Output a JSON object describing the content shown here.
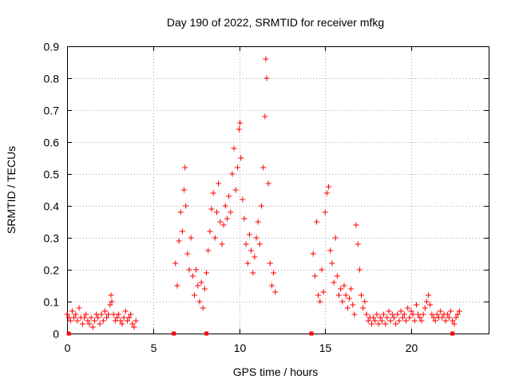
{
  "chart_data": {
    "type": "scatter",
    "title": "Day 190 of 2022, SRMTID for receiver mfkg",
    "xlabel": "GPS time / hours",
    "ylabel": "SRMTID / TECUs",
    "xlim": [
      0,
      24.5
    ],
    "ylim": [
      0,
      0.9
    ],
    "xticks": [
      0,
      5,
      10,
      15,
      20
    ],
    "yticks": [
      0,
      0.1,
      0.2,
      0.3,
      0.4,
      0.5,
      0.6,
      0.7,
      0.8,
      0.9
    ],
    "xtick_labels": [
      "0",
      "5",
      "10",
      "15",
      "20"
    ],
    "ytick_labels": [
      "0",
      "0.1",
      "0.2",
      "0.3",
      "0.4",
      "0.5",
      "0.6",
      "0.7",
      "0.8",
      "0.9"
    ],
    "grid": true,
    "marker": "+",
    "color": "#ff0000",
    "series": [
      {
        "name": "SRMTID",
        "points": [
          [
            0.0,
            0.06
          ],
          [
            0.1,
            0.05
          ],
          [
            0.2,
            0.04
          ],
          [
            0.3,
            0.07
          ],
          [
            0.4,
            0.05
          ],
          [
            0.5,
            0.06
          ],
          [
            0.6,
            0.04
          ],
          [
            0.7,
            0.08
          ],
          [
            0.8,
            0.05
          ],
          [
            0.9,
            0.03
          ],
          [
            1.0,
            0.05
          ],
          [
            1.1,
            0.06
          ],
          [
            1.2,
            0.04
          ],
          [
            1.3,
            0.03
          ],
          [
            1.4,
            0.05
          ],
          [
            1.5,
            0.02
          ],
          [
            1.6,
            0.04
          ],
          [
            1.7,
            0.06
          ],
          [
            1.8,
            0.05
          ],
          [
            1.9,
            0.03
          ],
          [
            2.0,
            0.06
          ],
          [
            2.1,
            0.04
          ],
          [
            2.2,
            0.07
          ],
          [
            2.3,
            0.05
          ],
          [
            2.4,
            0.06
          ],
          [
            2.5,
            0.09
          ],
          [
            2.55,
            0.12
          ],
          [
            2.6,
            0.1
          ],
          [
            2.7,
            0.06
          ],
          [
            2.8,
            0.04
          ],
          [
            2.9,
            0.05
          ],
          [
            3.0,
            0.06
          ],
          [
            3.1,
            0.04
          ],
          [
            3.2,
            0.03
          ],
          [
            3.3,
            0.05
          ],
          [
            3.4,
            0.07
          ],
          [
            3.5,
            0.04
          ],
          [
            3.6,
            0.05
          ],
          [
            3.7,
            0.06
          ],
          [
            3.8,
            0.03
          ],
          [
            3.9,
            0.02
          ],
          [
            4.0,
            0.04
          ],
          [
            6.3,
            0.22
          ],
          [
            6.4,
            0.15
          ],
          [
            6.5,
            0.29
          ],
          [
            6.6,
            0.38
          ],
          [
            6.7,
            0.32
          ],
          [
            6.8,
            0.45
          ],
          [
            6.85,
            0.52
          ],
          [
            6.9,
            0.4
          ],
          [
            7.0,
            0.25
          ],
          [
            7.1,
            0.2
          ],
          [
            7.2,
            0.3
          ],
          [
            7.3,
            0.18
          ],
          [
            7.4,
            0.12
          ],
          [
            7.5,
            0.2
          ],
          [
            7.6,
            0.15
          ],
          [
            7.7,
            0.1
          ],
          [
            7.8,
            0.16
          ],
          [
            7.9,
            0.08
          ],
          [
            8.0,
            0.14
          ],
          [
            8.1,
            0.19
          ],
          [
            8.2,
            0.26
          ],
          [
            8.3,
            0.32
          ],
          [
            8.4,
            0.39
          ],
          [
            8.5,
            0.44
          ],
          [
            8.6,
            0.3
          ],
          [
            8.7,
            0.38
          ],
          [
            8.8,
            0.47
          ],
          [
            8.9,
            0.35
          ],
          [
            9.0,
            0.28
          ],
          [
            9.1,
            0.34
          ],
          [
            9.2,
            0.4
          ],
          [
            9.3,
            0.36
          ],
          [
            9.4,
            0.43
          ],
          [
            9.5,
            0.38
          ],
          [
            9.6,
            0.5
          ],
          [
            9.7,
            0.58
          ],
          [
            9.8,
            0.45
          ],
          [
            9.9,
            0.52
          ],
          [
            10.0,
            0.64
          ],
          [
            10.05,
            0.66
          ],
          [
            10.1,
            0.55
          ],
          [
            10.2,
            0.42
          ],
          [
            10.3,
            0.36
          ],
          [
            10.4,
            0.28
          ],
          [
            10.5,
            0.22
          ],
          [
            10.6,
            0.31
          ],
          [
            10.7,
            0.26
          ],
          [
            10.8,
            0.19
          ],
          [
            10.9,
            0.24
          ],
          [
            11.0,
            0.3
          ],
          [
            11.1,
            0.35
          ],
          [
            11.2,
            0.28
          ],
          [
            11.3,
            0.4
          ],
          [
            11.4,
            0.52
          ],
          [
            11.5,
            0.68
          ],
          [
            11.55,
            0.86
          ],
          [
            11.6,
            0.8
          ],
          [
            11.7,
            0.47
          ],
          [
            11.8,
            0.22
          ],
          [
            11.9,
            0.15
          ],
          [
            12.0,
            0.19
          ],
          [
            12.1,
            0.13
          ],
          [
            14.3,
            0.25
          ],
          [
            14.4,
            0.18
          ],
          [
            14.5,
            0.35
          ],
          [
            14.6,
            0.12
          ],
          [
            14.7,
            0.1
          ],
          [
            14.8,
            0.2
          ],
          [
            14.9,
            0.13
          ],
          [
            15.0,
            0.38
          ],
          [
            15.1,
            0.44
          ],
          [
            15.2,
            0.46
          ],
          [
            15.3,
            0.26
          ],
          [
            15.4,
            0.22
          ],
          [
            15.5,
            0.16
          ],
          [
            15.6,
            0.3
          ],
          [
            15.7,
            0.18
          ],
          [
            15.8,
            0.12
          ],
          [
            15.9,
            0.14
          ],
          [
            16.0,
            0.1
          ],
          [
            16.1,
            0.15
          ],
          [
            16.2,
            0.12
          ],
          [
            16.3,
            0.08
          ],
          [
            16.4,
            0.11
          ],
          [
            16.5,
            0.14
          ],
          [
            16.6,
            0.09
          ],
          [
            16.7,
            0.06
          ],
          [
            16.8,
            0.34
          ],
          [
            16.9,
            0.28
          ],
          [
            17.0,
            0.2
          ],
          [
            17.1,
            0.12
          ],
          [
            17.2,
            0.08
          ],
          [
            17.3,
            0.1
          ],
          [
            17.4,
            0.06
          ],
          [
            17.5,
            0.04
          ],
          [
            17.6,
            0.05
          ],
          [
            17.7,
            0.03
          ],
          [
            17.8,
            0.05
          ],
          [
            17.9,
            0.04
          ],
          [
            18.0,
            0.06
          ],
          [
            18.1,
            0.03
          ],
          [
            18.2,
            0.05
          ],
          [
            18.3,
            0.04
          ],
          [
            18.4,
            0.06
          ],
          [
            18.5,
            0.03
          ],
          [
            18.6,
            0.05
          ],
          [
            18.7,
            0.07
          ],
          [
            18.8,
            0.04
          ],
          [
            18.9,
            0.06
          ],
          [
            19.0,
            0.05
          ],
          [
            19.1,
            0.03
          ],
          [
            19.2,
            0.06
          ],
          [
            19.3,
            0.04
          ],
          [
            19.4,
            0.07
          ],
          [
            19.5,
            0.05
          ],
          [
            19.6,
            0.06
          ],
          [
            19.7,
            0.04
          ],
          [
            19.8,
            0.08
          ],
          [
            19.9,
            0.05
          ],
          [
            20.0,
            0.07
          ],
          [
            20.1,
            0.06
          ],
          [
            20.2,
            0.04
          ],
          [
            20.3,
            0.09
          ],
          [
            20.4,
            0.06
          ],
          [
            20.5,
            0.05
          ],
          [
            20.6,
            0.04
          ],
          [
            20.7,
            0.06
          ],
          [
            20.8,
            0.08
          ],
          [
            20.9,
            0.1
          ],
          [
            21.0,
            0.12
          ],
          [
            21.1,
            0.09
          ],
          [
            21.2,
            0.06
          ],
          [
            21.3,
            0.05
          ],
          [
            21.4,
            0.04
          ],
          [
            21.5,
            0.06
          ],
          [
            21.6,
            0.05
          ],
          [
            21.7,
            0.07
          ],
          [
            21.8,
            0.05
          ],
          [
            21.9,
            0.06
          ],
          [
            22.0,
            0.04
          ],
          [
            22.1,
            0.06
          ],
          [
            22.2,
            0.05
          ],
          [
            22.3,
            0.07
          ],
          [
            22.4,
            0.04
          ],
          [
            22.5,
            0.03
          ],
          [
            22.6,
            0.05
          ],
          [
            22.7,
            0.06
          ],
          [
            22.8,
            0.07
          ]
        ]
      }
    ],
    "gap_markers_x": [
      0.1,
      6.2,
      8.1,
      14.2,
      22.4
    ]
  }
}
